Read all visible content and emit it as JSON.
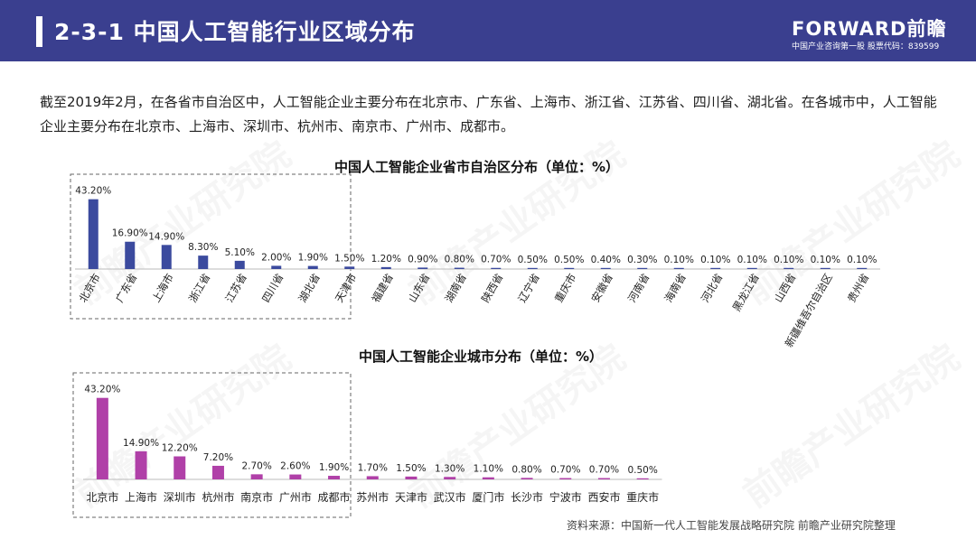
{
  "header": {
    "title": "2-3-1  中国人工智能行业区域分布",
    "logo": "FORWARD前瞻",
    "logo_sub": "中国产业咨询第一股  股票代码：839599"
  },
  "intro": "截至2019年2月，在各省市自治区中，人工智能企业主要分布在北京市、广东省、上海市、浙江省、江苏省、四川省、湖北省。在各城市中，人工智能企业主要分布在北京市、上海市、深圳市、杭州市、南京市、广州市、成都市。",
  "watermark": "前瞻产业研究院",
  "source": "资料来源：中国新一代人工智能发展战略研究院 前瞻产业研究院整理",
  "colors": {
    "header": "#3a3f8f",
    "province_bar": "#3b4a9e",
    "city_bar": "#b040a8",
    "highlight_box": "#666666"
  },
  "chart_data": [
    {
      "type": "bar",
      "title": "中国人工智能企业省市自治区分布（单位：%）",
      "categories": [
        "北京市",
        "广东省",
        "上海市",
        "浙江省",
        "江苏省",
        "四川省",
        "湖北省",
        "天津市",
        "福建省",
        "山东省",
        "湖南省",
        "陕西省",
        "辽宁省",
        "重庆市",
        "安徽省",
        "河南省",
        "海南省",
        "河北省",
        "黑龙江省",
        "山西省",
        "新疆维吾尔自治区",
        "贵州省"
      ],
      "values": [
        43.2,
        16.9,
        14.9,
        8.3,
        5.1,
        2.0,
        1.9,
        1.5,
        1.2,
        0.9,
        0.8,
        0.7,
        0.5,
        0.5,
        0.4,
        0.3,
        0.1,
        0.1,
        0.1,
        0.1,
        0.1,
        0.1
      ],
      "labels": [
        "43.20%",
        "16.90%",
        "14.90%",
        "8.30%",
        "5.10%",
        "2.00%",
        "1.90%",
        "1.50%",
        "1.20%",
        "0.90%",
        "0.80%",
        "0.70%",
        "0.50%",
        "0.50%",
        "0.40%",
        "0.30%",
        "0.10%",
        "0.10%",
        "0.10%",
        "0.10%",
        "0.10%",
        "0.10%"
      ],
      "highlighted_count": 7,
      "color": "#3b4a9e"
    },
    {
      "type": "bar",
      "title": "中国人工智能企业城市分布（单位：%）",
      "categories": [
        "北京市",
        "上海市",
        "深圳市",
        "杭州市",
        "南京市",
        "广州市",
        "成都市",
        "苏州市",
        "天津市",
        "武汉市",
        "厦门市",
        "长沙市",
        "宁波市",
        "西安市",
        "重庆市"
      ],
      "values": [
        43.2,
        14.9,
        12.2,
        7.2,
        2.7,
        2.6,
        1.9,
        1.7,
        1.5,
        1.3,
        1.1,
        0.8,
        0.7,
        0.7,
        0.5
      ],
      "labels": [
        "43.20%",
        "14.90%",
        "12.20%",
        "7.20%",
        "2.70%",
        "2.60%",
        "1.90%",
        "1.70%",
        "1.50%",
        "1.30%",
        "1.10%",
        "0.80%",
        "0.70%",
        "0.70%",
        "0.50%"
      ],
      "highlighted_count": 7,
      "color": "#b040a8"
    }
  ]
}
